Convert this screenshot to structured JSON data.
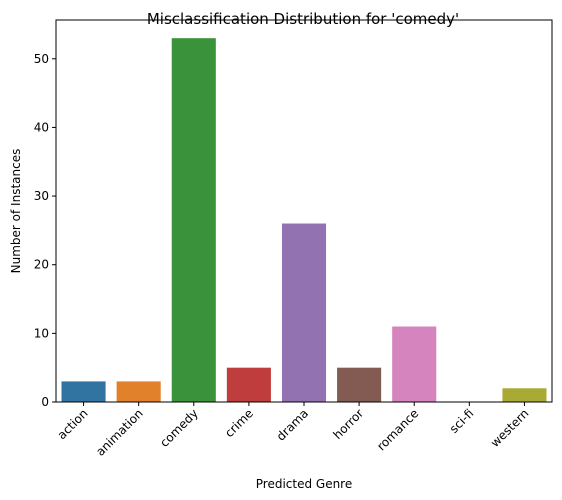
{
  "chart_data": {
    "type": "bar",
    "title": "Misclassification Distribution for 'comedy'",
    "xlabel": "Predicted Genre",
    "ylabel": "Number of Instances",
    "categories": [
      "action",
      "animation",
      "comedy",
      "crime",
      "drama",
      "horror",
      "romance",
      "sci-fi",
      "western"
    ],
    "values": [
      3,
      3,
      53,
      5,
      26,
      5,
      11,
      0,
      2
    ],
    "colors": [
      "#3274a1",
      "#e1812c",
      "#3a923a",
      "#c03d3e",
      "#9372b2",
      "#845b53",
      "#d684bd",
      "#7f7f7f",
      "#a9aa35"
    ],
    "ylim": [
      0,
      55.65
    ],
    "yticks": [
      0,
      10,
      20,
      30,
      40,
      50
    ],
    "grid": false,
    "legend": "none"
  }
}
